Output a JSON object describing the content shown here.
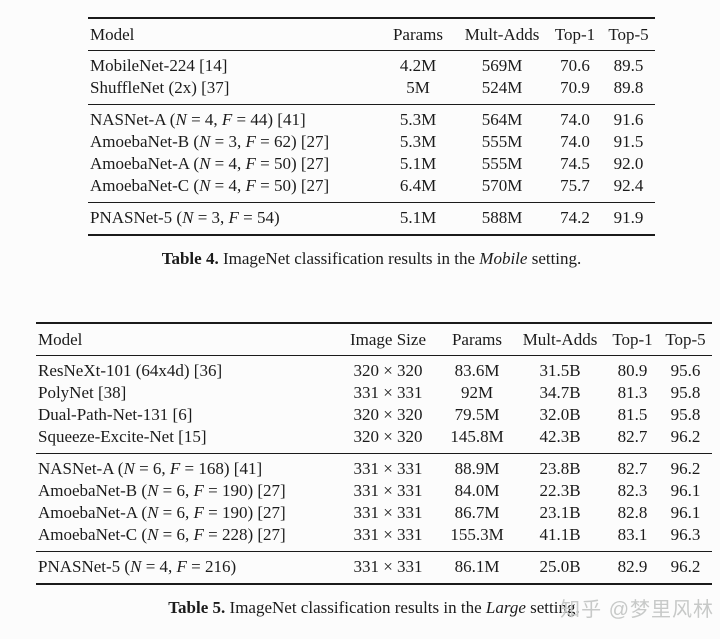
{
  "page": {
    "background_color": "#fcfcfc",
    "text_color": "#1b1b1b",
    "rule_color": "#1b1b1b"
  },
  "table4": {
    "headers": [
      "Model",
      "Params",
      "Mult-Adds",
      "Top-1",
      "Top-5"
    ],
    "groups": [
      {
        "rows": [
          {
            "model": "MobileNet-224 [14]",
            "params": "4.2M",
            "multadds": "569M",
            "top1": "70.6",
            "top5": "89.5"
          },
          {
            "model": "ShuffleNet (2x) [37]",
            "params": "5M",
            "multadds": "524M",
            "top1": "70.9",
            "top5": "89.8"
          }
        ]
      },
      {
        "rows": [
          {
            "model": "NASNet-A (N = 4, F = 44) [41]",
            "params": "5.3M",
            "multadds": "564M",
            "top1": "74.0",
            "top5": "91.6"
          },
          {
            "model": "AmoebaNet-B (N = 3, F = 62) [27]",
            "params": "5.3M",
            "multadds": "555M",
            "top1": "74.0",
            "top5": "91.5"
          },
          {
            "model": "AmoebaNet-A (N = 4, F = 50) [27]",
            "params": "5.1M",
            "multadds": "555M",
            "top1": "74.5",
            "top5": "92.0"
          },
          {
            "model": "AmoebaNet-C (N = 4, F = 50) [27]",
            "params": "6.4M",
            "multadds": "570M",
            "top1": "75.7",
            "top5": "92.4"
          }
        ]
      },
      {
        "rows": [
          {
            "model": "PNASNet-5 (N = 3, F = 54)",
            "params": "5.1M",
            "multadds": "588M",
            "top1": "74.2",
            "top5": "91.9"
          }
        ]
      }
    ],
    "caption": {
      "label": "Table 4.",
      "before_italic": " ImageNet classification results in the ",
      "italic": "Mobile",
      "after_italic": " setting."
    }
  },
  "table5": {
    "headers": [
      "Model",
      "Image Size",
      "Params",
      "Mult-Adds",
      "Top-1",
      "Top-5"
    ],
    "groups": [
      {
        "rows": [
          {
            "model": "ResNeXt-101 (64x4d) [36]",
            "size": "320 × 320",
            "params": "83.6M",
            "multadds": "31.5B",
            "top1": "80.9",
            "top5": "95.6"
          },
          {
            "model": "PolyNet [38]",
            "size": "331 × 331",
            "params": "92M",
            "multadds": "34.7B",
            "top1": "81.3",
            "top5": "95.8"
          },
          {
            "model": "Dual-Path-Net-131 [6]",
            "size": "320 × 320",
            "params": "79.5M",
            "multadds": "32.0B",
            "top1": "81.5",
            "top5": "95.8"
          },
          {
            "model": "Squeeze-Excite-Net [15]",
            "size": "320 × 320",
            "params": "145.8M",
            "multadds": "42.3B",
            "top1": "82.7",
            "top5": "96.2"
          }
        ]
      },
      {
        "rows": [
          {
            "model": "NASNet-A (N = 6, F = 168) [41]",
            "size": "331 × 331",
            "params": "88.9M",
            "multadds": "23.8B",
            "top1": "82.7",
            "top5": "96.2"
          },
          {
            "model": "AmoebaNet-B (N = 6, F = 190) [27]",
            "size": "331 × 331",
            "params": "84.0M",
            "multadds": "22.3B",
            "top1": "82.3",
            "top5": "96.1"
          },
          {
            "model": "AmoebaNet-A (N = 6, F = 190) [27]",
            "size": "331 × 331",
            "params": "86.7M",
            "multadds": "23.1B",
            "top1": "82.8",
            "top5": "96.1"
          },
          {
            "model": "AmoebaNet-C (N = 6, F = 228) [27]",
            "size": "331 × 331",
            "params": "155.3M",
            "multadds": "41.1B",
            "top1": "83.1",
            "top5": "96.3"
          }
        ]
      },
      {
        "rows": [
          {
            "model": "PNASNet-5 (N = 4, F = 216)",
            "size": "331 × 331",
            "params": "86.1M",
            "multadds": "25.0B",
            "top1": "82.9",
            "top5": "96.2"
          }
        ]
      }
    ],
    "caption": {
      "label": "Table 5.",
      "before_italic": " ImageNet classification results in the ",
      "italic": "Large",
      "after_italic": " setting."
    }
  },
  "watermark": {
    "text": "知乎 @梦里风林",
    "color": "#c7c9c8"
  }
}
